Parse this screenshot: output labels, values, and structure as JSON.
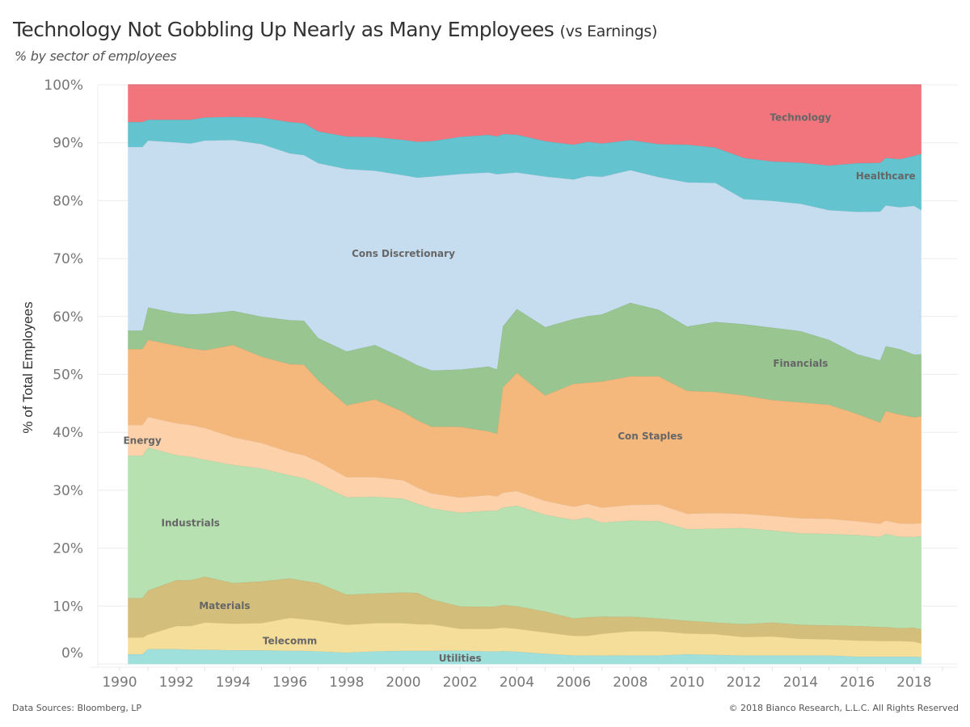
{
  "header": {
    "title": "Technology Not Gobbling Up Nearly as Many Employees",
    "title_suffix": "(vs Earnings)",
    "subtitle": "% by sector of employees"
  },
  "footer": {
    "source": "Data Sources: Bloomberg, LP",
    "copyright": "© 2018 Bianco Research, L.L.C. All Rights Reserved"
  },
  "chart_data": {
    "type": "area",
    "stacked": true,
    "normalized": true,
    "title": "Technology Not Gobbling Up Nearly as Many Employees (vs Earnings)",
    "subtitle": "% by sector of employees",
    "xlabel": "",
    "ylabel": "% of Total Employees",
    "xlim": [
      1989.5,
      2019
    ],
    "ylim": [
      0,
      100
    ],
    "x_ticks": [
      1990,
      1992,
      1994,
      1996,
      1998,
      2000,
      2002,
      2004,
      2006,
      2008,
      2010,
      2012,
      2014,
      2016,
      2018
    ],
    "x_tick_labels": [
      "1990",
      "1992",
      "1994",
      "1996",
      "1998",
      "2000",
      "2002",
      "2004",
      "2006",
      "2008",
      "2010",
      "2012",
      "2014",
      "2016",
      "2018"
    ],
    "y_ticks": [
      0,
      10,
      20,
      30,
      40,
      50,
      60,
      70,
      80,
      90,
      100
    ],
    "y_tick_labels": [
      "0%",
      "10%",
      "20%",
      "30%",
      "40%",
      "50%",
      "60%",
      "70%",
      "80%",
      "90%",
      "100%"
    ],
    "grid": true,
    "legend": "inline-labels",
    "x": [
      1990.3,
      1990.8,
      1991.0,
      1992.0,
      1992.5,
      1993.0,
      1994.0,
      1995.0,
      1996.0,
      1996.5,
      1997.0,
      1998.0,
      1999.0,
      2000.0,
      2000.5,
      2001.0,
      2002.0,
      2003.0,
      2003.3,
      2003.5,
      2004.0,
      2005.0,
      2006.0,
      2006.5,
      2007.0,
      2008.0,
      2009.0,
      2010.0,
      2011.0,
      2012.0,
      2013.0,
      2014.0,
      2015.0,
      2016.0,
      2016.8,
      2017.0,
      2017.5,
      2018.0,
      2018.25
    ],
    "series": [
      {
        "name": "Utilities",
        "color": "#9fdfdc",
        "values": [
          1.7,
          1.7,
          2.6,
          2.6,
          2.5,
          2.5,
          2.4,
          2.4,
          2.3,
          2.3,
          2.2,
          2.0,
          2.2,
          2.3,
          2.3,
          2.3,
          2.3,
          2.2,
          2.2,
          2.2,
          2.1,
          1.8,
          1.5,
          1.5,
          1.5,
          1.5,
          1.5,
          1.7,
          1.6,
          1.5,
          1.5,
          1.5,
          1.5,
          1.3,
          1.3,
          1.3,
          1.3,
          1.3,
          1.2
        ]
      },
      {
        "name": "Telecomm",
        "color": "#f5dd9a",
        "values": [
          2.9,
          2.9,
          2.5,
          4.0,
          4.1,
          4.7,
          4.6,
          4.7,
          5.7,
          5.5,
          5.3,
          4.8,
          4.9,
          4.8,
          4.6,
          4.6,
          3.7,
          3.9,
          4.0,
          4.0,
          3.9,
          3.7,
          3.4,
          3.4,
          3.8,
          4.2,
          4.2,
          3.6,
          3.6,
          3.2,
          3.3,
          2.9,
          2.8,
          2.8,
          2.7,
          2.7,
          2.7,
          2.6,
          2.4
        ]
      },
      {
        "name": "Materials",
        "color": "#d3bf7b",
        "values": [
          6.8,
          6.8,
          7.6,
          7.9,
          7.9,
          7.9,
          7.0,
          7.2,
          6.8,
          6.6,
          6.5,
          5.2,
          5.1,
          5.3,
          5.4,
          4.3,
          3.8,
          3.8,
          3.8,
          3.8,
          3.8,
          3.6,
          3.0,
          3.2,
          3.0,
          2.5,
          2.2,
          2.2,
          2.0,
          2.2,
          2.4,
          2.4,
          2.4,
          2.5,
          2.4,
          2.4,
          2.2,
          2.4,
          2.4
        ]
      },
      {
        "name": "Industrials",
        "color": "#b7e1b0",
        "values": [
          24.6,
          24.6,
          24.7,
          21.6,
          21.3,
          20.2,
          20.4,
          19.5,
          17.8,
          17.7,
          17.1,
          16.8,
          16.7,
          16.2,
          15.4,
          15.7,
          15.9,
          16.6,
          16.5,
          16.5,
          17.0,
          16.7,
          17.0,
          17.2,
          16.4,
          16.6,
          16.8,
          15.8,
          16.2,
          16.6,
          15.9,
          15.8,
          15.8,
          15.7,
          15.5,
          16.1,
          15.8,
          15.6,
          16.1
        ]
      },
      {
        "name": "Energy",
        "color": "#fdd2ab",
        "values": [
          5.3,
          5.3,
          5.3,
          5.5,
          5.5,
          5.5,
          4.8,
          4.4,
          4.0,
          4.0,
          3.9,
          3.5,
          3.4,
          3.2,
          2.8,
          2.6,
          2.6,
          2.7,
          2.5,
          2.5,
          2.5,
          2.4,
          2.3,
          2.4,
          2.6,
          2.7,
          2.9,
          2.7,
          2.7,
          2.5,
          2.5,
          2.6,
          2.6,
          2.4,
          2.3,
          2.3,
          2.3,
          2.3,
          2.3
        ]
      },
      {
        "name": "Con Staples",
        "color": "#f4b87c",
        "values": [
          13.1,
          13.1,
          13.3,
          13.4,
          13.2,
          13.4,
          15.9,
          14.9,
          15.2,
          15.6,
          14.0,
          12.4,
          13.4,
          11.8,
          11.6,
          11.5,
          12.0,
          11.0,
          10.8,
          17.8,
          20.0,
          18.2,
          21.2,
          20.9,
          22.0,
          22.2,
          22.1,
          21.2,
          20.9,
          20.4,
          20.0,
          20.0,
          19.7,
          18.5,
          17.4,
          18.9,
          18.8,
          18.3,
          18.4
        ]
      },
      {
        "name": "Financials",
        "color": "#99c591",
        "values": [
          3.2,
          3.2,
          5.6,
          5.6,
          5.9,
          6.3,
          5.9,
          6.9,
          7.6,
          7.6,
          7.3,
          9.3,
          9.4,
          9.3,
          9.5,
          9.7,
          9.7,
          11.2,
          11.1,
          10.3,
          10.8,
          11.8,
          11.2,
          11.5,
          11.7,
          12.7,
          11.5,
          11.1,
          12.1,
          12.3,
          12.5,
          12.3,
          11.2,
          10.3,
          10.7,
          11.2,
          11.3,
          10.8,
          10.7
        ]
      },
      {
        "name": "Cons Discretionary",
        "color": "#c5ddef",
        "values": [
          31.7,
          31.7,
          28.8,
          29.5,
          29.5,
          29.9,
          29.5,
          29.8,
          28.8,
          28.6,
          30.2,
          31.5,
          30.1,
          31.6,
          32.4,
          33.5,
          33.2,
          33.5,
          33.7,
          25.9,
          23.1,
          26.0,
          24.1,
          24.2,
          24.0,
          22.9,
          22.9,
          24.9,
          24.0,
          21.6,
          21.9,
          22.0,
          22.4,
          24.6,
          25.6,
          24.3,
          24.5,
          25.6,
          24.9
        ]
      },
      {
        "name": "Healthcare",
        "color": "#63c3cf",
        "values": [
          4.3,
          4.3,
          3.6,
          3.9,
          4.1,
          4.0,
          4.0,
          4.6,
          5.4,
          5.5,
          5.5,
          5.6,
          5.8,
          6.1,
          6.2,
          6.1,
          6.3,
          6.5,
          6.5,
          6.7,
          6.4,
          6.1,
          6.0,
          5.9,
          5.8,
          5.2,
          5.7,
          6.5,
          6.1,
          7.1,
          6.8,
          7.1,
          7.7,
          8.4,
          8.4,
          8.2,
          8.3,
          8.6,
          9.7
        ]
      },
      {
        "name": "Technology",
        "color": "#f2757d",
        "values": [
          6.4,
          6.4,
          6.0,
          6.0,
          6.0,
          5.6,
          5.5,
          5.6,
          6.4,
          6.6,
          8.0,
          8.9,
          9.0,
          9.5,
          9.8,
          9.7,
          8.8,
          8.6,
          8.9,
          8.3,
          8.4,
          9.7,
          10.3,
          9.8,
          10.2,
          9.5,
          10.2,
          10.3,
          10.8,
          12.6,
          13.2,
          13.4,
          13.9,
          13.5,
          13.4,
          12.6,
          12.8,
          12.2,
          11.9
        ]
      }
    ],
    "annotations": [
      {
        "text": "Technology",
        "x": 2014.0,
        "y": 93.8
      },
      {
        "text": "Healthcare",
        "x": 2017.0,
        "y": 83.7
      },
      {
        "text": "Cons Discretionary",
        "x": 2000.0,
        "y": 70.3
      },
      {
        "text": "Financials",
        "x": 2014.0,
        "y": 51.3
      },
      {
        "text": "Con Staples",
        "x": 2008.7,
        "y": 38.8
      },
      {
        "text": "Energy",
        "x": 1990.8,
        "y": 38.0
      },
      {
        "text": "Industrials",
        "x": 1992.5,
        "y": 23.8
      },
      {
        "text": "Materials",
        "x": 1993.7,
        "y": 9.5
      },
      {
        "text": "Telecomm",
        "x": 1996.0,
        "y": 3.4
      },
      {
        "text": "Utilities",
        "x": 2002.0,
        "y": 0.4
      }
    ]
  }
}
